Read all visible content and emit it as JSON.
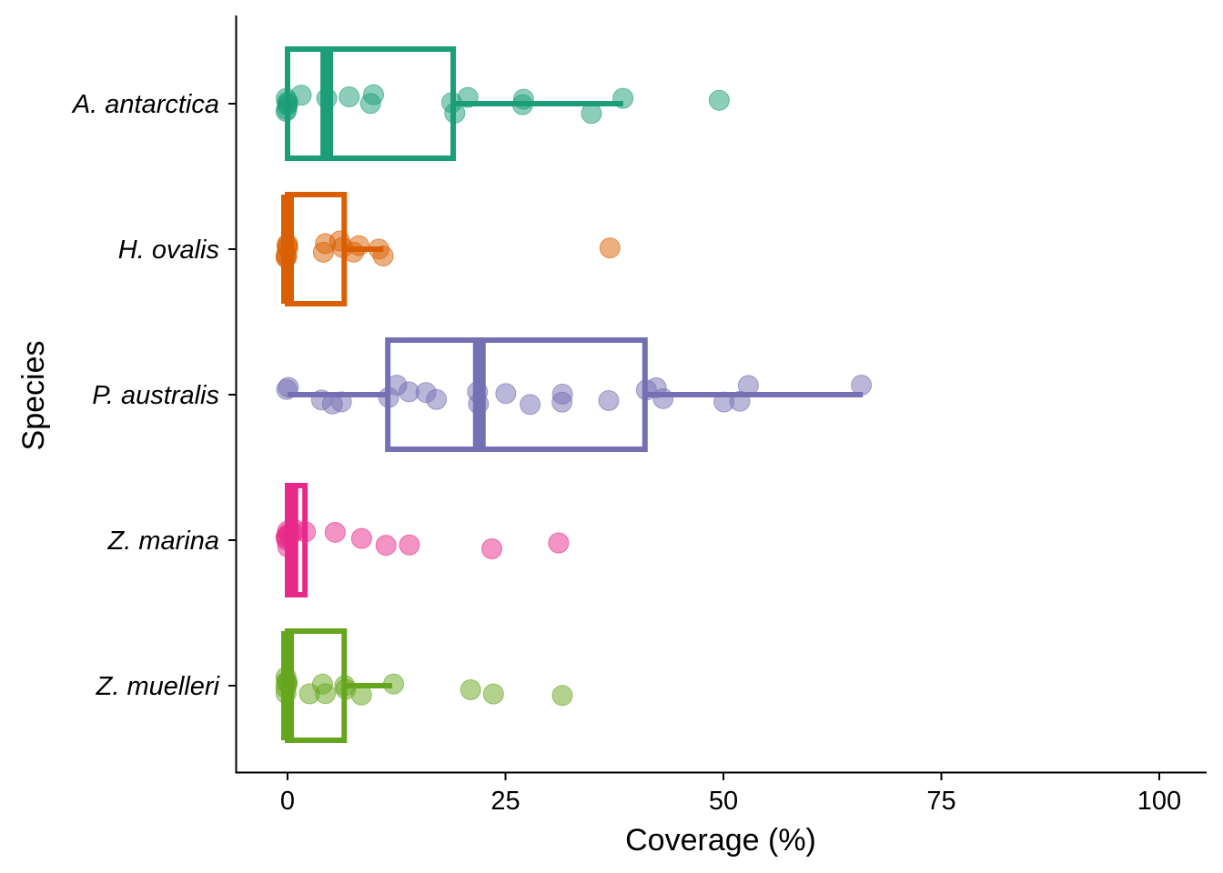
{
  "chart_data": {
    "type": "boxplot",
    "orientation": "horizontal",
    "xlabel": "Coverage (%)",
    "ylabel": "Species",
    "xlim": [
      -6,
      105
    ],
    "xticks": [
      0,
      25,
      50,
      75,
      100
    ],
    "grid": false,
    "legend": "none",
    "categories": [
      "A. antarctica",
      "H. ovalis",
      "P. australis",
      "Z. marina",
      "Z. muelleri"
    ],
    "series": [
      {
        "name": "A. antarctica",
        "color": "#1b9e77",
        "box": {
          "whisker_low": 0,
          "q1": 0,
          "median": 4.5,
          "q3": 19,
          "whisker_high": 38.5
        },
        "points": [
          0,
          0,
          0,
          0,
          0,
          0,
          1.5,
          4.5,
          7,
          9.5,
          10,
          19,
          19,
          20.5,
          27,
          27,
          35,
          38.5,
          49.5
        ]
      },
      {
        "name": "H. ovalis",
        "color": "#d95f02",
        "box": {
          "whisker_low": 0,
          "q1": 0,
          "median": 0,
          "q3": 6.5,
          "whisker_high": 11
        },
        "points": [
          0,
          0,
          0,
          0,
          0,
          0,
          4,
          4.5,
          6,
          6.5,
          7.5,
          8,
          10.5,
          11,
          37
        ]
      },
      {
        "name": "P. australis",
        "color": "#7570b3",
        "box": {
          "whisker_low": 0,
          "q1": 11.5,
          "median": 22,
          "q3": 41,
          "whisker_high": 66
        },
        "points": [
          0,
          0,
          4,
          5,
          6,
          11.5,
          12.5,
          14,
          16,
          17,
          22,
          22,
          25,
          28,
          31.5,
          31.5,
          37,
          41,
          42.5,
          43,
          50,
          52,
          53,
          66
        ]
      },
      {
        "name": "Z. marina",
        "color": "#e7298a",
        "box": {
          "whisker_low": 0,
          "q1": 0,
          "median": 0.5,
          "q3": 2,
          "whisker_high": 2
        },
        "points": [
          0,
          0,
          0,
          0,
          0,
          0,
          0.5,
          1,
          2,
          5.5,
          8.5,
          11.5,
          14,
          23.5,
          31
        ]
      },
      {
        "name": "Z. muelleri",
        "color": "#66a61e",
        "box": {
          "whisker_low": 0,
          "q1": 0,
          "median": 0,
          "q3": 6.5,
          "whisker_high": 12
        },
        "points": [
          0,
          0,
          0,
          0,
          0,
          0,
          2.5,
          4,
          4.5,
          6.5,
          6.5,
          8.5,
          12,
          21,
          23.5,
          31.5
        ]
      }
    ]
  }
}
